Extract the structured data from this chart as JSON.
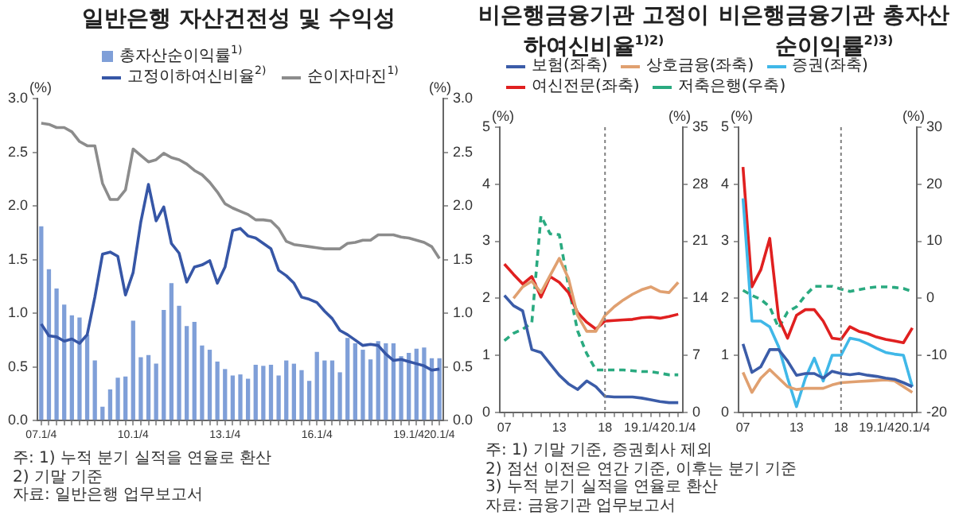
{
  "chart_data": [
    {
      "type": "bar",
      "title": "일반은행 자산건전성 및 수익성",
      "ylabel": "(%)",
      "y2label": "(%)",
      "categories": [
        "07.1/4",
        null,
        null,
        null,
        null,
        null,
        null,
        null,
        null,
        null,
        null,
        null,
        "10.1/4",
        null,
        null,
        null,
        null,
        null,
        null,
        null,
        null,
        null,
        null,
        null,
        "13.1/4",
        null,
        null,
        null,
        null,
        null,
        null,
        null,
        null,
        null,
        null,
        null,
        "16.1/4",
        null,
        null,
        null,
        null,
        null,
        null,
        null,
        null,
        null,
        null,
        null,
        "19.1/4",
        null,
        null,
        null,
        "20.1/4"
      ],
      "series": [
        {
          "name": "총자산순이익률$^{1)}$",
          "color": "#7f9fd8",
          "values": [
            1.81,
            1.41,
            1.23,
            1.08,
            0.98,
            0.96,
            0.8,
            0.56,
            0.13,
            0.29,
            0.4,
            0.41,
            0.93,
            0.59,
            0.61,
            0.53,
            1.03,
            1.28,
            1.07,
            0.88,
            0.92,
            0.7,
            0.66,
            0.55,
            0.48,
            0.42,
            0.43,
            0.39,
            0.52,
            0.51,
            0.52,
            0.42,
            0.56,
            0.53,
            0.47,
            0.37,
            0.64,
            0.56,
            0.56,
            0.45,
            0.77,
            0.72,
            0.66,
            0.57,
            0.74,
            0.72,
            0.72,
            0.6,
            0.63,
            0.67,
            0.68,
            0.58,
            0.58
          ]
        },
        {
          "name": "고정이하여신비율$^{2)}$",
          "type": "line",
          "color": "#3656a6",
          "values": [
            0.9,
            0.79,
            0.78,
            0.74,
            0.76,
            0.72,
            0.8,
            1.15,
            1.55,
            1.57,
            1.53,
            1.17,
            1.38,
            1.85,
            2.2,
            1.86,
            1.99,
            1.65,
            1.56,
            1.29,
            1.43,
            1.45,
            1.49,
            1.28,
            1.43,
            1.77,
            1.79,
            1.72,
            1.7,
            1.65,
            1.6,
            1.4,
            1.35,
            1.28,
            1.15,
            1.13,
            1.1,
            1.02,
            0.95,
            0.84,
            0.8,
            0.75,
            0.7,
            0.71,
            0.7,
            0.62,
            0.56,
            0.57,
            0.55,
            0.53,
            0.51,
            0.47,
            0.48
          ]
        },
        {
          "name": "순이자마진$^{1)}$",
          "type": "line",
          "color": "#8c8c8c",
          "values": [
            2.77,
            2.76,
            2.73,
            2.73,
            2.69,
            2.6,
            2.56,
            2.56,
            2.21,
            2.06,
            2.06,
            2.15,
            2.53,
            2.47,
            2.41,
            2.43,
            2.49,
            2.45,
            2.43,
            2.39,
            2.33,
            2.29,
            2.22,
            2.13,
            2.02,
            1.98,
            1.95,
            1.92,
            1.87,
            1.87,
            1.86,
            1.79,
            1.67,
            1.64,
            1.63,
            1.62,
            1.61,
            1.6,
            1.6,
            1.6,
            1.65,
            1.66,
            1.68,
            1.68,
            1.73,
            1.73,
            1.73,
            1.71,
            1.7,
            1.68,
            1.66,
            1.62,
            1.51
          ]
        }
      ],
      "ylim": [
        0,
        3
      ],
      "yticks": [
        {
          "value": 0,
          "label": "0.0"
        },
        {
          "value": 0.5,
          "label": "0.5"
        },
        {
          "value": 1,
          "label": "1.0"
        },
        {
          "value": 1.5,
          "label": "1.5"
        },
        {
          "value": 2,
          "label": "2.0"
        },
        {
          "value": 2.5,
          "label": "2.5"
        },
        {
          "value": 3,
          "label": "3.0"
        }
      ],
      "y2lim": [
        0,
        3
      ],
      "y2ticks": [
        {
          "value": 0,
          "label": "0.0"
        },
        {
          "value": 0.5,
          "label": "0.5"
        },
        {
          "value": 1,
          "label": "1.0"
        },
        {
          "value": 1.5,
          "label": "1.5"
        },
        {
          "value": 2,
          "label": "2.0"
        },
        {
          "value": 2.5,
          "label": "2.5"
        },
        {
          "value": 3,
          "label": "3.0"
        }
      ],
      "grid": false,
      "legend": "top",
      "marker": "none",
      "annotations": [
        "주: 1) 누적 분기 실적을 연율로 환산",
        "2) 기말 기준",
        "자료: 일반은행 업무보고서"
      ]
    },
    {
      "type": "line",
      "title": "비은행금융기관 고정이하여신비율$^{1)2)}$",
      "ylabel": "(%)",
      "y2label": "(%)",
      "categories": [
        "07",
        null,
        null,
        null,
        null,
        null,
        "13",
        null,
        null,
        null,
        null,
        "18",
        null,
        null,
        null,
        "19.1/4",
        null,
        null,
        null,
        "20.1/4"
      ],
      "series": [
        {
          "name": "보험(좌축)",
          "color": "#3b5ca8",
          "values": [
            2.05,
            1.87,
            1.78,
            1.1,
            1.05,
            0.85,
            0.65,
            0.5,
            0.4,
            0.55,
            0.45,
            0.28,
            0.27,
            0.27,
            0.27,
            0.25,
            0.22,
            0.19,
            0.17,
            0.17
          ]
        },
        {
          "name": "상호금융(좌축)",
          "color": "#e0a070",
          "values": [
            null,
            2.0,
            2.2,
            2.3,
            2.1,
            2.4,
            2.7,
            2.35,
            1.7,
            1.42,
            1.42,
            1.7,
            1.85,
            1.97,
            2.07,
            2.15,
            2.2,
            2.12,
            2.1,
            2.28
          ]
        },
        {
          "name": "여신전문(좌축)",
          "color": "#e02020",
          "values": [
            2.6,
            2.42,
            2.25,
            2.38,
            2.02,
            2.38,
            2.28,
            2.1,
            1.75,
            1.58,
            1.46,
            1.6,
            1.61,
            1.62,
            1.63,
            1.66,
            1.67,
            1.65,
            1.68,
            1.72
          ]
        },
        {
          "name": "저축은행(우축)",
          "color": "#2aaa80",
          "axis": "y2",
          "line_style": "dashed",
          "values": [
            8.8,
            9.7,
            10.2,
            11.0,
            24.1,
            21.9,
            21.8,
            15.5,
            10.0,
            7.2,
            5.2,
            5.2,
            5.2,
            5.2,
            5.1,
            5.0,
            5.0,
            4.8,
            4.6,
            4.6
          ]
        }
      ],
      "ylim": [
        0,
        5
      ],
      "yticks": [
        0,
        1,
        2,
        3,
        4,
        5
      ],
      "y2lim": [
        0,
        35
      ],
      "y2ticks": [
        0,
        7,
        14,
        21,
        28,
        35
      ],
      "grid": false,
      "legend": "top",
      "marker": "none",
      "ref_lines": [
        {
          "axis": "x",
          "value": "18",
          "color": "#808080",
          "line_style": "dotted"
        }
      ],
      "annotations": [
        "주: 1) 기말 기준, 증권회사 제외",
        "2) 점선 이전은 연간 기준, 이후는 분기 기준",
        "3) 누적 분기 실적을 연율로 환산",
        "자료: 금융기관 업무보고서"
      ]
    },
    {
      "type": "line",
      "title": "비은행금융기관 총자산순이익률$^{2)3)}$",
      "ylabel": "(%)",
      "y2label": "(%)",
      "categories": [
        "07",
        null,
        null,
        null,
        null,
        null,
        "13",
        null,
        null,
        null,
        null,
        "18",
        null,
        null,
        null,
        "19.1/4",
        null,
        null,
        null,
        "20.1/4"
      ],
      "series": [
        {
          "name": "보험(좌축)",
          "color": "#3b5ca8",
          "values": [
            1.2,
            0.7,
            0.8,
            1.1,
            1.1,
            0.9,
            0.65,
            0.68,
            0.68,
            0.6,
            0.72,
            0.68,
            0.66,
            0.68,
            0.65,
            0.63,
            0.6,
            0.58,
            0.52,
            0.45
          ]
        },
        {
          "name": "상호금융(좌축)",
          "color": "#e0a070",
          "values": [
            0.7,
            0.35,
            0.6,
            0.75,
            0.6,
            0.45,
            0.4,
            0.42,
            0.42,
            0.42,
            0.48,
            0.52,
            0.53,
            0.54,
            0.55,
            0.56,
            0.57,
            0.55,
            0.45,
            0.35
          ]
        },
        {
          "name": "증권(좌축)",
          "color": "#40b8e8",
          "values": [
            3.75,
            1.6,
            1.6,
            1.5,
            1.15,
            0.6,
            0.1,
            0.6,
            0.95,
            0.55,
            1.0,
            1.0,
            1.3,
            1.27,
            1.2,
            1.12,
            1.05,
            1.02,
            1.0,
            0.45
          ]
        },
        {
          "name": "여신전문(좌축)",
          "color": "#e02020",
          "values": [
            4.3,
            2.2,
            2.5,
            3.05,
            1.65,
            1.3,
            1.7,
            1.8,
            1.8,
            1.6,
            1.3,
            1.28,
            1.5,
            1.42,
            1.38,
            1.32,
            1.28,
            1.25,
            1.22,
            1.48
          ]
        },
        {
          "name": "저축은행(우축)",
          "color": "#2aaa80",
          "axis": "y2",
          "line_style": "dashed",
          "values": [
            1.4,
            0.5,
            -0.2,
            -1.5,
            -5.2,
            -2.4,
            -1.5,
            0.5,
            2.1,
            2.1,
            2.1,
            1.6,
            1.2,
            1.5,
            1.8,
            2.0,
            2.0,
            1.9,
            1.7,
            1.2
          ]
        }
      ],
      "ylim": [
        0,
        5
      ],
      "yticks": [
        0,
        1,
        2,
        3,
        4,
        5
      ],
      "y2lim": [
        -20,
        30
      ],
      "y2ticks": [
        -20,
        -10,
        0,
        10,
        20,
        30
      ],
      "grid": false,
      "legend": "top",
      "marker": "none",
      "ref_lines": [
        {
          "axis": "x",
          "value": "18",
          "color": "#808080",
          "line_style": "dotted"
        }
      ]
    }
  ]
}
